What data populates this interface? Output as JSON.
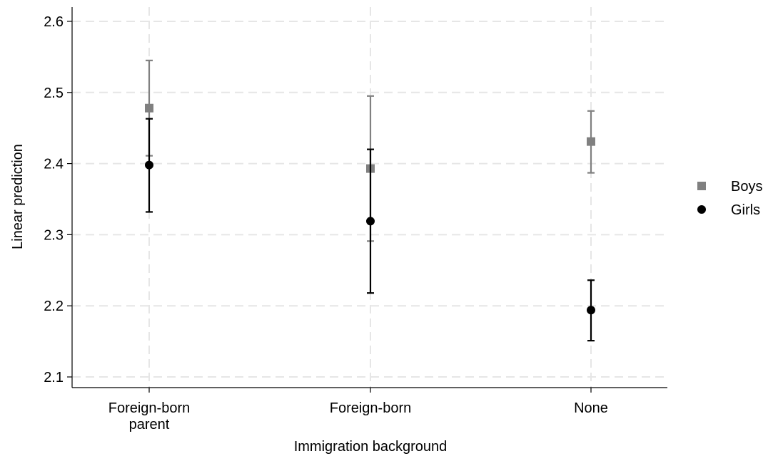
{
  "chart_data": {
    "type": "scatter",
    "xlabel": "Immigration background",
    "ylabel": "Linear prediction",
    "categories": [
      [
        "Foreign-born",
        "parent"
      ],
      [
        "Foreign-born"
      ],
      [
        "None"
      ]
    ],
    "ylim": [
      2.085,
      2.62
    ],
    "yticks": [
      "2.1",
      "2.2",
      "2.3",
      "2.4",
      "2.5",
      "2.6"
    ],
    "grid": true,
    "legend_position": "right",
    "series": [
      {
        "name": "Boys",
        "marker": "square",
        "color": "#808080",
        "values": [
          2.478,
          2.393,
          2.431
        ],
        "ci_low": [
          2.411,
          2.291,
          2.387
        ],
        "ci_high": [
          2.545,
          2.495,
          2.474
        ]
      },
      {
        "name": "Girls",
        "marker": "circle",
        "color": "#000000",
        "values": [
          2.398,
          2.319,
          2.194
        ],
        "ci_low": [
          2.332,
          2.218,
          2.151
        ],
        "ci_high": [
          2.463,
          2.42,
          2.236
        ]
      }
    ]
  }
}
